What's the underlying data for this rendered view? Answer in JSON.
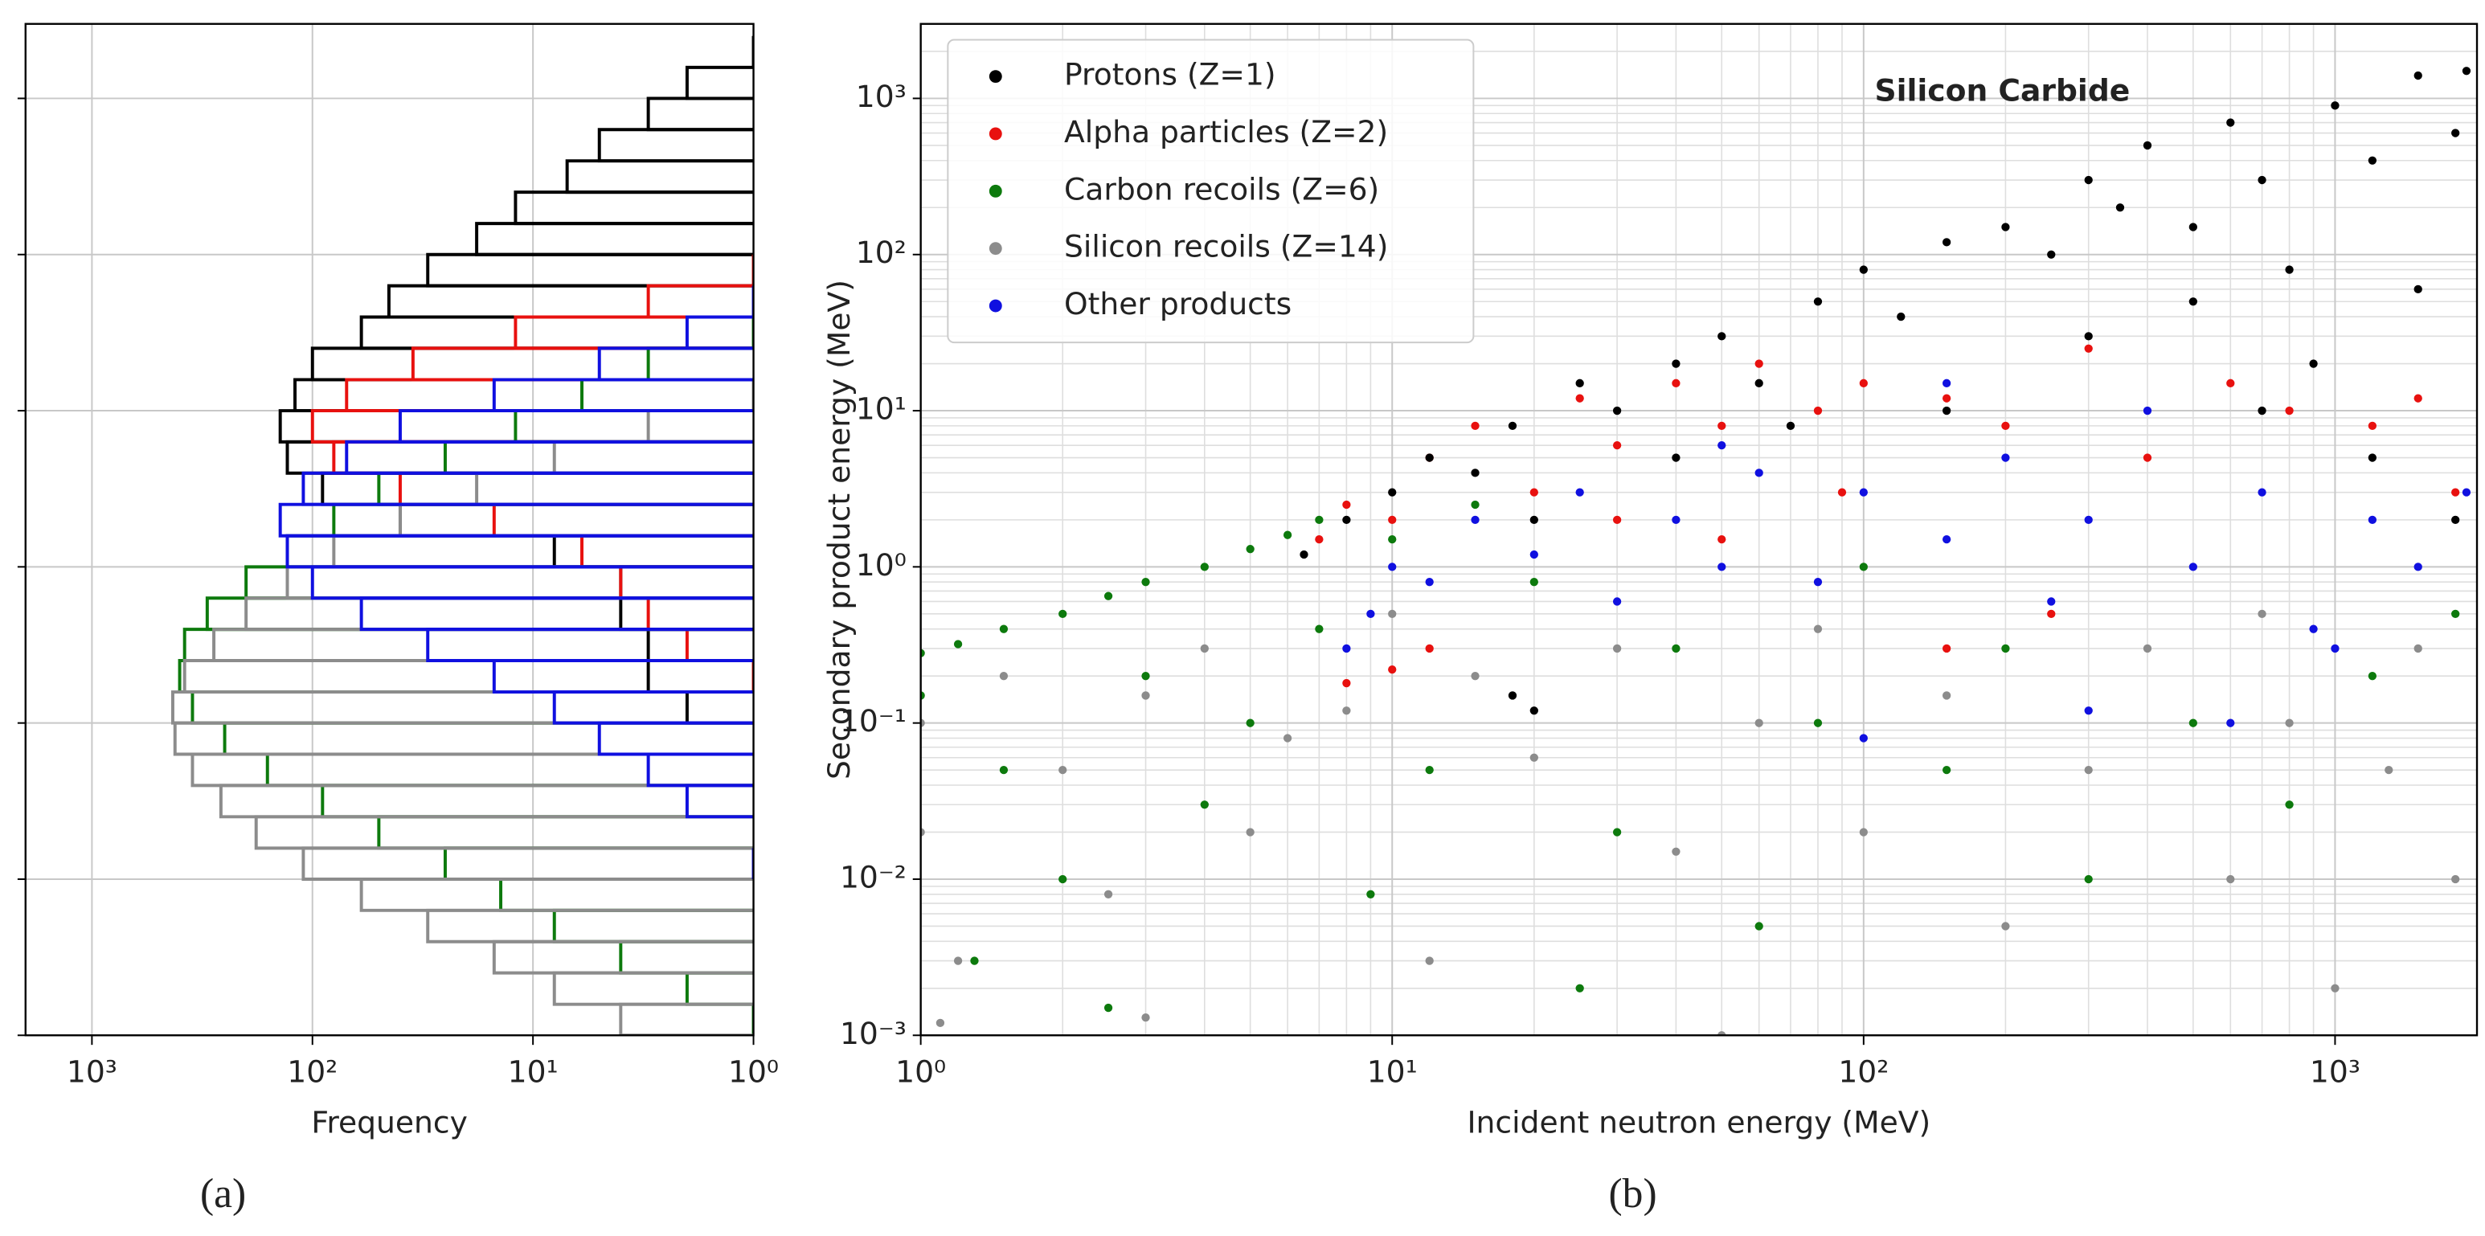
{
  "chart_data": [
    {
      "type": "histogram",
      "orientation": "horizontal",
      "xlabel": "Frequency",
      "caption": "(a)",
      "xscale": "log",
      "yscale": "log",
      "xlim": [
        2000,
        1
      ],
      "ylim": [
        0.001,
        3000
      ],
      "xticks": [
        {
          "value": 1000,
          "label": "10³"
        },
        {
          "value": 100,
          "label": "10²"
        },
        {
          "value": 10,
          "label": "10¹"
        },
        {
          "value": 1,
          "label": "10⁰"
        }
      ],
      "yticks": [
        0.001,
        0.01,
        0.1,
        1,
        10,
        100,
        1000
      ],
      "grid": true,
      "bins": [
        0.001,
        0.00158,
        0.00251,
        0.00398,
        0.00631,
        0.01,
        0.0158,
        0.0251,
        0.0398,
        0.0631,
        0.1,
        0.158,
        0.251,
        0.398,
        0.631,
        1,
        1.58,
        2.51,
        3.98,
        6.31,
        10,
        15.8,
        25.1,
        39.8,
        63.1,
        100,
        158,
        251,
        398,
        631,
        1000,
        1580,
        2510
      ],
      "series": [
        {
          "name": "Protons (Z=1)",
          "color": "#000000",
          "values": [
            null,
            null,
            null,
            null,
            null,
            null,
            null,
            null,
            null,
            null,
            2,
            3,
            3,
            4,
            4,
            8,
            40,
            90,
            130,
            140,
            120,
            100,
            60,
            45,
            30,
            18,
            12,
            7,
            5,
            3,
            2,
            1
          ]
        },
        {
          "name": "Alpha particles (Z=2)",
          "color": "#e8110f",
          "values": [
            null,
            null,
            null,
            null,
            null,
            null,
            null,
            null,
            null,
            null,
            null,
            1,
            2,
            3,
            4,
            6,
            15,
            40,
            80,
            100,
            70,
            35,
            12,
            3,
            1,
            null,
            null,
            null,
            null,
            null,
            null,
            null
          ]
        },
        {
          "name": "Carbon recoils (Z=6)",
          "color": "#0d7a0d",
          "values": [
            1,
            2,
            4,
            8,
            14,
            25,
            50,
            90,
            160,
            250,
            350,
            400,
            380,
            300,
            200,
            130,
            80,
            50,
            25,
            12,
            6,
            3,
            1,
            null,
            null,
            null,
            null,
            null,
            null,
            null,
            null,
            null
          ]
        },
        {
          "name": "Silicon recoils (Z=14)",
          "color": "#8c8c8c",
          "values": [
            4,
            8,
            15,
            30,
            60,
            110,
            180,
            260,
            350,
            420,
            430,
            380,
            280,
            200,
            130,
            80,
            40,
            18,
            8,
            3,
            1,
            null,
            null,
            null,
            null,
            null,
            null,
            null,
            null,
            null,
            null,
            null
          ]
        },
        {
          "name": "Other products",
          "color": "#1010e0",
          "values": [
            null,
            null,
            null,
            null,
            null,
            1,
            null,
            2,
            3,
            5,
            8,
            15,
            30,
            60,
            100,
            130,
            140,
            110,
            70,
            40,
            15,
            5,
            2,
            1,
            null,
            null,
            null,
            null,
            null,
            null,
            null,
            null
          ]
        }
      ]
    },
    {
      "type": "scatter",
      "title": "Silicon Carbide",
      "xlabel": "Incident neutron energy (MeV)",
      "ylabel": "Secondary product energy (MeV)",
      "caption": "(b)",
      "xscale": "log",
      "yscale": "log",
      "xlim": [
        1,
        2000
      ],
      "ylim": [
        0.001,
        3000
      ],
      "xticks": [
        {
          "value": 1,
          "label": "10⁰"
        },
        {
          "value": 10,
          "label": "10¹"
        },
        {
          "value": 100,
          "label": "10²"
        },
        {
          "value": 1000,
          "label": "10³"
        }
      ],
      "yticks": [
        {
          "value": 0.001,
          "label": "10⁻³"
        },
        {
          "value": 0.01,
          "label": "10⁻²"
        },
        {
          "value": 0.1,
          "label": "10⁻¹"
        },
        {
          "value": 1,
          "label": "10⁰"
        },
        {
          "value": 10,
          "label": "10¹"
        },
        {
          "value": 100,
          "label": "10²"
        },
        {
          "value": 1000,
          "label": "10³"
        }
      ],
      "grid": true,
      "minor_grid": true,
      "legend": "upper left",
      "series": [
        {
          "name": "Protons (Z=1)",
          "color": "#000000",
          "x": [
            6.5,
            8,
            10,
            12,
            15,
            18,
            20,
            25,
            30,
            40,
            50,
            60,
            80,
            100,
            120,
            150,
            200,
            250,
            300,
            350,
            400,
            500,
            600,
            700,
            800,
            1000,
            1200,
            1500,
            1800,
            1900,
            40,
            70,
            150,
            300,
            500,
            900,
            1500,
            1800,
            1200,
            18,
            20,
            700
          ],
          "values": [
            1.2,
            2,
            3,
            5,
            4,
            8,
            2,
            15,
            10,
            20,
            30,
            15,
            50,
            80,
            40,
            120,
            150,
            100,
            300,
            200,
            500,
            150,
            700,
            300,
            80,
            900,
            400,
            1400,
            600,
            1500,
            5,
            8,
            10,
            30,
            50,
            20,
            60,
            2,
            5,
            0.15,
            0.12,
            10
          ]
        },
        {
          "name": "Alpha particles (Z=2)",
          "color": "#e8110f",
          "x": [
            7,
            8,
            10,
            12,
            15,
            20,
            25,
            30,
            40,
            50,
            60,
            80,
            100,
            150,
            200,
            300,
            400,
            600,
            800,
            1200,
            1500,
            30,
            50,
            90,
            8,
            10,
            12,
            150,
            250,
            1800
          ],
          "values": [
            1.5,
            2.5,
            2,
            5,
            8,
            3,
            12,
            6,
            15,
            8,
            20,
            10,
            15,
            12,
            8,
            25,
            5,
            15,
            10,
            8,
            12,
            2,
            1.5,
            3,
            0.18,
            0.22,
            0.3,
            0.3,
            0.5,
            3
          ]
        },
        {
          "name": "Carbon recoils (Z=6)",
          "color": "#0d7a0d",
          "x": [
            1,
            1,
            1.2,
            1.5,
            2,
            2.5,
            3,
            4,
            5,
            6,
            7,
            1.5,
            2,
            3,
            4,
            5,
            7,
            10,
            12,
            15,
            20,
            30,
            40,
            60,
            80,
            100,
            150,
            200,
            300,
            500,
            800,
            1200,
            1800,
            25,
            2.5,
            1.3,
            9
          ],
          "values": [
            0.28,
            0.15,
            0.32,
            0.4,
            0.5,
            0.65,
            0.8,
            1,
            1.3,
            1.6,
            2,
            0.05,
            0.01,
            0.2,
            0.03,
            0.1,
            0.4,
            1.5,
            0.05,
            2.5,
            0.8,
            0.02,
            0.3,
            0.005,
            0.1,
            1,
            0.05,
            0.3,
            0.01,
            0.1,
            0.03,
            0.2,
            0.5,
            0.002,
            0.0015,
            0.003,
            0.008
          ]
        },
        {
          "name": "Silicon recoils (Z=14)",
          "color": "#8c8c8c",
          "x": [
            1,
            1,
            1.2,
            1.5,
            2,
            2.5,
            3,
            4,
            5,
            6,
            8,
            10,
            12,
            15,
            20,
            30,
            40,
            60,
            80,
            100,
            150,
            200,
            300,
            400,
            600,
            800,
            1000,
            1300,
            1800,
            1.1,
            3,
            50,
            700,
            1500
          ],
          "values": [
            0.1,
            0.02,
            0.003,
            0.2,
            0.05,
            0.008,
            0.15,
            0.3,
            0.02,
            0.08,
            0.12,
            0.5,
            0.003,
            0.2,
            0.06,
            0.3,
            0.015,
            0.1,
            0.4,
            0.02,
            0.15,
            0.005,
            0.05,
            0.3,
            0.01,
            0.1,
            0.002,
            0.05,
            0.01,
            0.0012,
            0.0013,
            0.001,
            0.5,
            0.3
          ]
        },
        {
          "name": "Other products",
          "color": "#1010e0",
          "x": [
            8,
            9,
            10,
            12,
            15,
            20,
            25,
            30,
            40,
            50,
            60,
            80,
            100,
            150,
            200,
            250,
            300,
            400,
            500,
            700,
            900,
            1200,
            1500,
            1900,
            100,
            300,
            600,
            1000,
            50,
            150
          ],
          "values": [
            0.3,
            0.5,
            1,
            0.8,
            2,
            1.2,
            3,
            0.6,
            2,
            1,
            4,
            0.8,
            3,
            1.5,
            5,
            0.6,
            2,
            10,
            1,
            3,
            0.4,
            2,
            1,
            3,
            0.08,
            0.12,
            0.1,
            0.3,
            6,
            15
          ]
        }
      ]
    }
  ]
}
